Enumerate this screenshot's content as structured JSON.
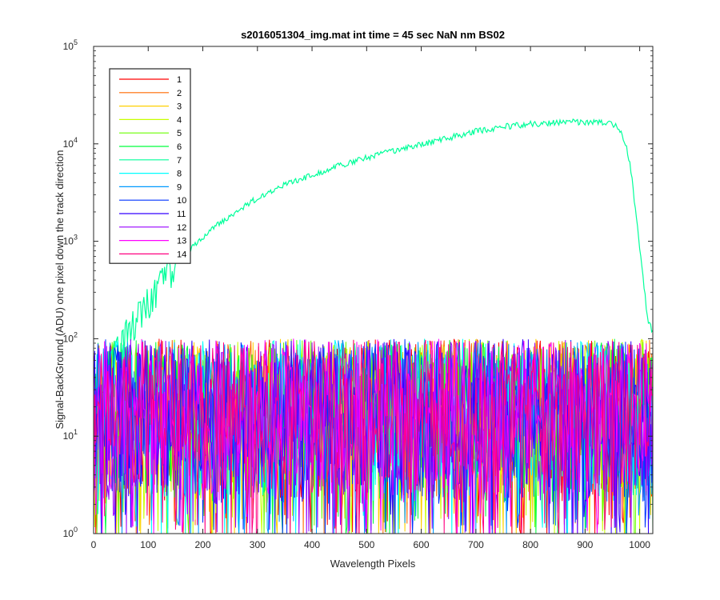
{
  "chart_data": {
    "type": "line",
    "title": "s2016051304_img.mat int time = 45 sec  NaN nm BS02",
    "xlabel": "Wavelength Pixels",
    "ylabel": "Signal-BackGround (ADU) one pixel down the track direction",
    "xlim": [
      0,
      1024
    ],
    "ylim": [
      1,
      100000
    ],
    "yscale": "log",
    "grid": false,
    "legend_position": "top-left",
    "x_ticks": [
      "0",
      "100",
      "200",
      "300",
      "400",
      "500",
      "600",
      "700",
      "800",
      "900",
      "1000"
    ],
    "x_tick_values": [
      0,
      100,
      200,
      300,
      400,
      500,
      600,
      700,
      800,
      900,
      1000
    ],
    "y_tick_values": [
      1,
      10,
      100,
      1000,
      10000,
      100000
    ],
    "y_tick_base": "10",
    "y_tick_exponents": [
      "0",
      "1",
      "2",
      "3",
      "4",
      "5"
    ],
    "noise_level": {
      "typical_low": 2,
      "typical_high": 100,
      "description_range": [
        1,
        100
      ]
    },
    "series": [
      {
        "name": "1",
        "color": "#ff0000",
        "kind": "noise"
      },
      {
        "name": "2",
        "color": "#ff6a00",
        "kind": "noise"
      },
      {
        "name": "3",
        "color": "#ffd000",
        "kind": "noise"
      },
      {
        "name": "4",
        "color": "#c8ff00",
        "kind": "noise"
      },
      {
        "name": "5",
        "color": "#6aff00",
        "kind": "noise"
      },
      {
        "name": "6",
        "color": "#00ff3c",
        "kind": "noise"
      },
      {
        "name": "7",
        "color": "#00ff9a",
        "kind": "signal",
        "points": [
          [
            0,
            20
          ],
          [
            20,
            40
          ],
          [
            40,
            70
          ],
          [
            60,
            110
          ],
          [
            80,
            170
          ],
          [
            100,
            260
          ],
          [
            120,
            380
          ],
          [
            140,
            520
          ],
          [
            160,
            680
          ],
          [
            180,
            880
          ],
          [
            200,
            1100
          ],
          [
            220,
            1400
          ],
          [
            250,
            1800
          ],
          [
            280,
            2400
          ],
          [
            300,
            2800
          ],
          [
            330,
            3400
          ],
          [
            360,
            4000
          ],
          [
            400,
            4800
          ],
          [
            450,
            6000
          ],
          [
            500,
            7200
          ],
          [
            550,
            8500
          ],
          [
            600,
            9800
          ],
          [
            650,
            11500
          ],
          [
            700,
            13500
          ],
          [
            750,
            15000
          ],
          [
            800,
            16000
          ],
          [
            850,
            16500
          ],
          [
            880,
            17000
          ],
          [
            900,
            16500
          ],
          [
            940,
            16500
          ],
          [
            960,
            15000
          ],
          [
            975,
            10000
          ],
          [
            985,
            5000
          ],
          [
            995,
            1500
          ],
          [
            1005,
            500
          ],
          [
            1015,
            150
          ],
          [
            1024,
            120
          ]
        ]
      },
      {
        "name": "8",
        "color": "#00ffff",
        "kind": "noise"
      },
      {
        "name": "9",
        "color": "#0099ff",
        "kind": "noise"
      },
      {
        "name": "10",
        "color": "#0033ff",
        "kind": "noise"
      },
      {
        "name": "11",
        "color": "#3300ff",
        "kind": "noise"
      },
      {
        "name": "12",
        "color": "#9900ff",
        "kind": "noise"
      },
      {
        "name": "13",
        "color": "#ff00ff",
        "kind": "noise"
      },
      {
        "name": "14",
        "color": "#ff0080",
        "kind": "noise"
      }
    ]
  }
}
